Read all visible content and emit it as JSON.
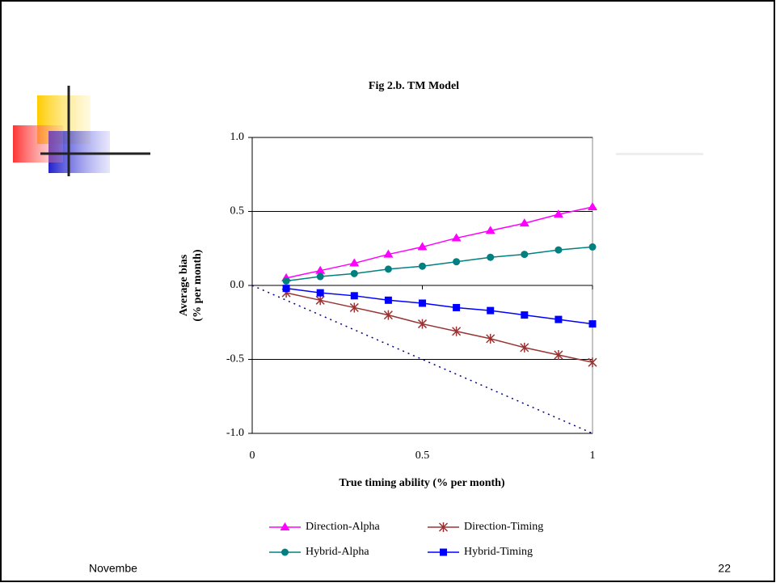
{
  "chart_data": {
    "type": "line",
    "title": "Fig 2.b. TM Model",
    "xlabel": "True timing ability (% per month)",
    "ylabel": [
      "Average bias",
      "(% per month)"
    ],
    "x": [
      0.1,
      0.2,
      0.3,
      0.4,
      0.5,
      0.6,
      0.7,
      0.8,
      0.9,
      1
    ],
    "xlim": [
      0,
      1
    ],
    "xticks": [
      0,
      0.5,
      1
    ],
    "ylim": [
      -1,
      1
    ],
    "yticks": [
      {
        "value": 1,
        "label": "1.0"
      },
      0.5,
      {
        "value": 0,
        "label": "0.0"
      },
      -0.5,
      {
        "value": -1,
        "label": "-1.0"
      }
    ],
    "grid": true,
    "series": [
      {
        "name": "Direction-Alpha",
        "color": "#ff00ff",
        "marker": "triangle",
        "values": [
          0.05,
          0.1,
          0.15,
          0.21,
          0.26,
          0.32,
          0.37,
          0.42,
          0.48,
          0.53
        ]
      },
      {
        "name": "Direction-Timing",
        "color": "#993333",
        "marker": "star",
        "values": [
          -0.05,
          -0.1,
          -0.15,
          -0.2,
          -0.26,
          -0.31,
          -0.36,
          -0.42,
          -0.47,
          -0.52
        ]
      },
      {
        "name": "Hybrid-Alpha",
        "color": "#008080",
        "marker": "circle",
        "values": [
          0.03,
          0.06,
          0.08,
          0.11,
          0.13,
          0.16,
          0.19,
          0.21,
          0.24,
          0.26
        ]
      },
      {
        "name": "Hybrid-Timing",
        "color": "#0000ff",
        "marker": "square",
        "values": [
          -0.02,
          -0.05,
          -0.07,
          -0.1,
          -0.12,
          -0.15,
          -0.17,
          -0.2,
          -0.23,
          -0.26
        ]
      }
    ],
    "reference": {
      "color": "#000080",
      "x": [
        0,
        1
      ],
      "values": [
        0,
        -1
      ]
    }
  },
  "footer": {
    "date": "Novembe",
    "page": "22"
  }
}
